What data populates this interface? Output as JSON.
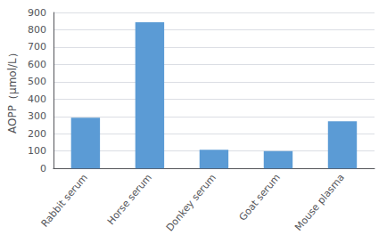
{
  "chart_data": {
    "type": "bar",
    "categories": [
      "Rabbit serum",
      "Horse serum",
      "Donkey serum",
      "Goat serum",
      "Mouse plasma"
    ],
    "values": [
      293,
      843,
      107,
      100,
      272
    ],
    "color": "#5B9BD5",
    "ylabel": "AOPP（μmol/L）",
    "ylim": [
      0,
      900
    ],
    "yticks": [
      0,
      100,
      200,
      300,
      400,
      500,
      600,
      700,
      800,
      900
    ],
    "grid": true
  }
}
